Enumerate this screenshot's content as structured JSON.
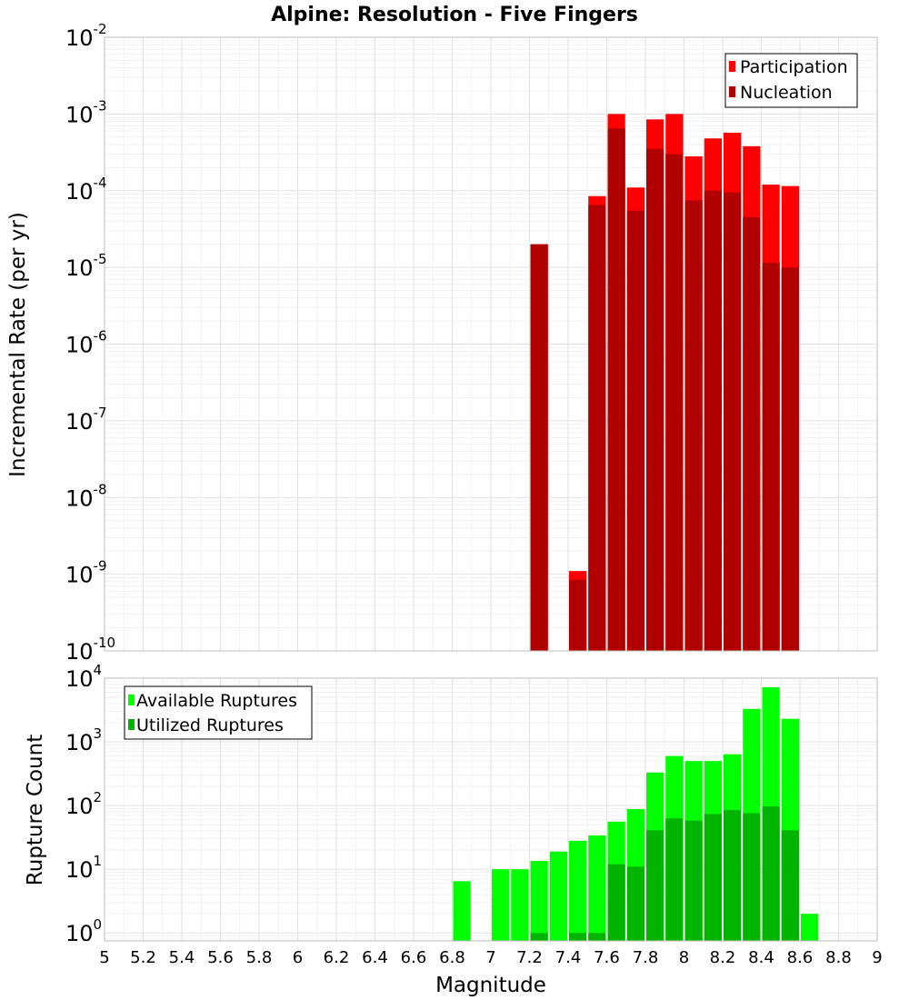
{
  "figure": {
    "title": "Alpine: Resolution - Five Fingers",
    "xlabel": "Magnitude",
    "x_ticks": [
      "5",
      "5.2",
      "5.4",
      "5.6",
      "5.8",
      "6",
      "6.2",
      "6.4",
      "6.6",
      "6.8",
      "7",
      "7.2",
      "7.4",
      "7.6",
      "7.8",
      "8",
      "8.2",
      "8.4",
      "8.6",
      "8.8",
      "9"
    ]
  },
  "chart_data": [
    {
      "type": "bar",
      "scale": "log",
      "title": "Alpine: Resolution - Five Fingers",
      "xlabel": "Magnitude",
      "ylabel": "Incremental Rate (per yr)",
      "xlim": [
        5,
        9
      ],
      "ylim": [
        1e-10,
        0.01
      ],
      "grid": true,
      "legend_position": "top-right",
      "bin_width": 0.1,
      "series": [
        {
          "name": "Participation",
          "color": "#ff0000",
          "x": [
            7.25,
            7.45,
            7.55,
            7.65,
            7.75,
            7.85,
            7.95,
            8.05,
            8.15,
            8.25,
            8.35,
            8.45,
            8.55
          ],
          "values": [
            2e-05,
            1.1e-09,
            8.5e-05,
            0.001,
            0.00011,
            0.00085,
            0.001,
            0.00028,
            0.00048,
            0.00057,
            0.00038,
            0.00012,
            0.000115
          ]
        },
        {
          "name": "Nucleation",
          "color": "#b00000",
          "x": [
            7.25,
            7.45,
            7.55,
            7.65,
            7.75,
            7.85,
            7.95,
            8.05,
            8.15,
            8.25,
            8.35,
            8.45,
            8.55
          ],
          "values": [
            2e-05,
            8.5e-10,
            6.5e-05,
            0.00065,
            5.5e-05,
            0.00035,
            0.0003,
            7.5e-05,
            0.0001,
            9.5e-05,
            4.5e-05,
            1.15e-05,
            1e-05
          ]
        }
      ],
      "y_ticks": [
        {
          "base": "10",
          "exp": "-2"
        },
        {
          "base": "10",
          "exp": "-3"
        },
        {
          "base": "10",
          "exp": "-4"
        },
        {
          "base": "10",
          "exp": "-5"
        },
        {
          "base": "10",
          "exp": "-6"
        },
        {
          "base": "10",
          "exp": "-7"
        },
        {
          "base": "10",
          "exp": "-8"
        },
        {
          "base": "10",
          "exp": "-9"
        },
        {
          "base": "10",
          "exp": "-10"
        }
      ]
    },
    {
      "type": "bar",
      "scale": "log",
      "xlabel": "Magnitude",
      "ylabel": "Rupture Count",
      "xlim": [
        5,
        9
      ],
      "ylim": [
        0.75,
        10000
      ],
      "grid": true,
      "legend_position": "top-left",
      "bin_width": 0.1,
      "series": [
        {
          "name": "Available Ruptures",
          "color": "#00ff00",
          "x": [
            6.85,
            7.05,
            7.15,
            7.25,
            7.35,
            7.45,
            7.55,
            7.65,
            7.75,
            7.85,
            7.95,
            8.05,
            8.15,
            8.25,
            8.35,
            8.45,
            8.55,
            8.65
          ],
          "values": [
            6.5,
            10,
            10,
            13.5,
            19,
            28,
            34,
            56,
            88,
            330,
            600,
            500,
            500,
            640,
            3300,
            7200,
            2300,
            2
          ]
        },
        {
          "name": "Utilized Ruptures",
          "color": "#00b400",
          "x": [
            7.25,
            7.45,
            7.55,
            7.65,
            7.75,
            7.85,
            7.95,
            8.05,
            8.15,
            8.25,
            8.35,
            8.45,
            8.55
          ],
          "values": [
            1,
            1,
            1,
            12,
            11,
            41,
            63,
            58,
            74,
            85,
            76,
            97,
            41
          ]
        }
      ],
      "y_ticks": [
        {
          "base": "10",
          "exp": "4"
        },
        {
          "base": "10",
          "exp": "3"
        },
        {
          "base": "10",
          "exp": "2"
        },
        {
          "base": "10",
          "exp": "1"
        },
        {
          "base": "10",
          "exp": "0"
        }
      ]
    }
  ]
}
